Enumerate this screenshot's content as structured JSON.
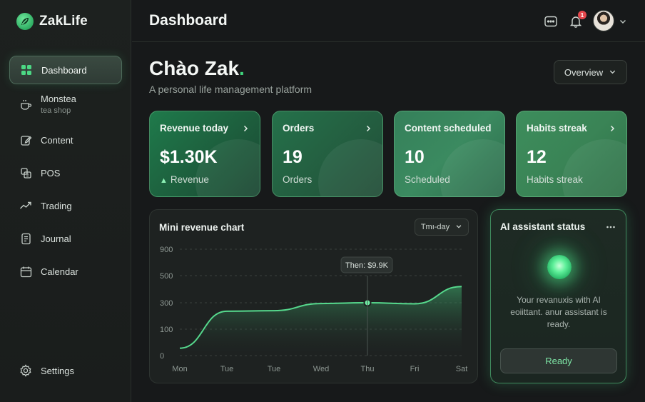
{
  "brand": {
    "name": "ZakLife"
  },
  "sidebar": {
    "items": [
      {
        "label": "Dashboard",
        "icon": "grid-icon",
        "active": true
      },
      {
        "label": "Monstea",
        "sublabel": "tea shop",
        "icon": "cup-icon"
      },
      {
        "label": "Content",
        "icon": "edit-icon"
      },
      {
        "label": "POS",
        "icon": "register-icon"
      },
      {
        "label": "Trading",
        "icon": "trend-icon"
      },
      {
        "label": "Journal",
        "icon": "journal-icon"
      },
      {
        "label": "Calendar",
        "icon": "calendar-icon"
      }
    ],
    "settings_label": "Settings"
  },
  "header": {
    "title": "Dashboard",
    "notification_count": "1"
  },
  "main": {
    "greeting": "Chào Zak",
    "greeting_dot": ".",
    "subtitle": "A personal life management platform",
    "view_select": "Overview"
  },
  "cards": [
    {
      "title": "Revenue today",
      "value": "$1.30K",
      "sub": "Revenue",
      "trend_icon": "up-arrow"
    },
    {
      "title": "Orders",
      "value": "19",
      "sub": "Orders"
    },
    {
      "title": "Content scheduled",
      "value": "10",
      "sub": "Scheduled"
    },
    {
      "title": "Habits streak",
      "value": "12",
      "sub": "Habits streak"
    }
  ],
  "chart_panel": {
    "title": "Mini revenue chart",
    "range_label": "Tmı-day",
    "tooltip": "Then: $9.9K"
  },
  "chart_data": {
    "type": "area",
    "categories": [
      "Mon",
      "Tue",
      "Tue",
      "Wed",
      "Thu",
      "Fri",
      "Sat"
    ],
    "y_ticks": [
      "900",
      "500",
      "300",
      "100",
      "0"
    ],
    "values": [
      28,
      236,
      240,
      294,
      300,
      292,
      420
    ],
    "ylim": [
      0,
      900
    ],
    "highlight_index": 4,
    "line_color": "#56d98d",
    "grid": true
  },
  "ai_panel": {
    "title": "AI assistant status",
    "message": "Your revanuxis with AI eoiittant. anur assistant is ready.",
    "button": "Ready"
  },
  "colors": {
    "accent": "#3fd47c",
    "background": "#17191a",
    "notification": "#e5484d"
  }
}
